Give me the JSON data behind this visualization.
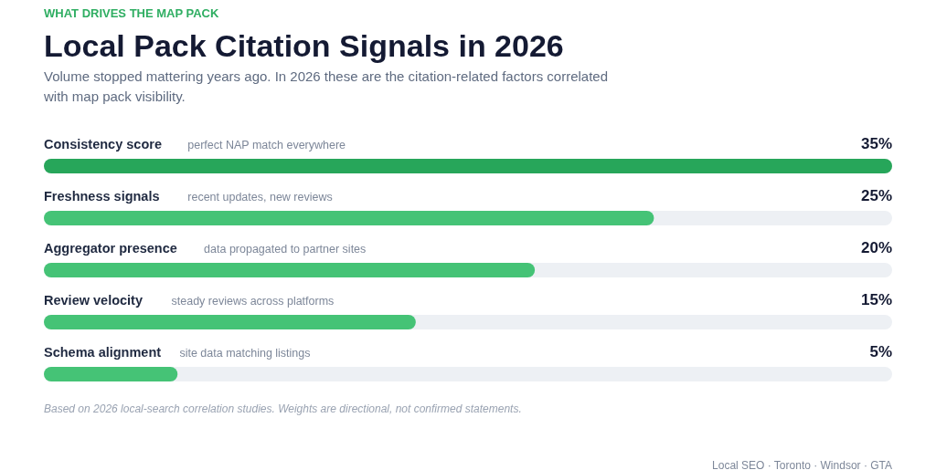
{
  "chart_data": {
    "type": "bar",
    "orientation": "horizontal",
    "title": "Local Pack Citation Signals in 2026",
    "subtitle": "Volume stopped mattering years ago. In 2026 these are the citation-related factors correlated with map pack visibility.",
    "categories": [
      "Consistency score",
      "Freshness signals",
      "Aggregator presence",
      "Review velocity",
      "Schema alignment"
    ],
    "values": [
      35,
      25,
      20,
      15,
      5
    ],
    "colors": [
      "#27a65a",
      "#45c376",
      "#45c376",
      "#45c376",
      "#45c376"
    ],
    "value_labels": [
      "35%",
      "25%",
      "20%",
      "15%",
      "5%"
    ],
    "xlim": [
      0,
      35
    ],
    "annotations": [
      "WHAT DRIVES THE MAP PACK",
      "perfect NAP match everywhere",
      "recent updates, new reviews",
      "data propagated to partner sites",
      "steady reviews across platforms",
      "site data matching listings",
      "Based on 2026 local-search correlation studies. Weights are directional, not confirmed statements.",
      "Local SEO · Toronto · Windsor · GTA"
    ]
  }
}
